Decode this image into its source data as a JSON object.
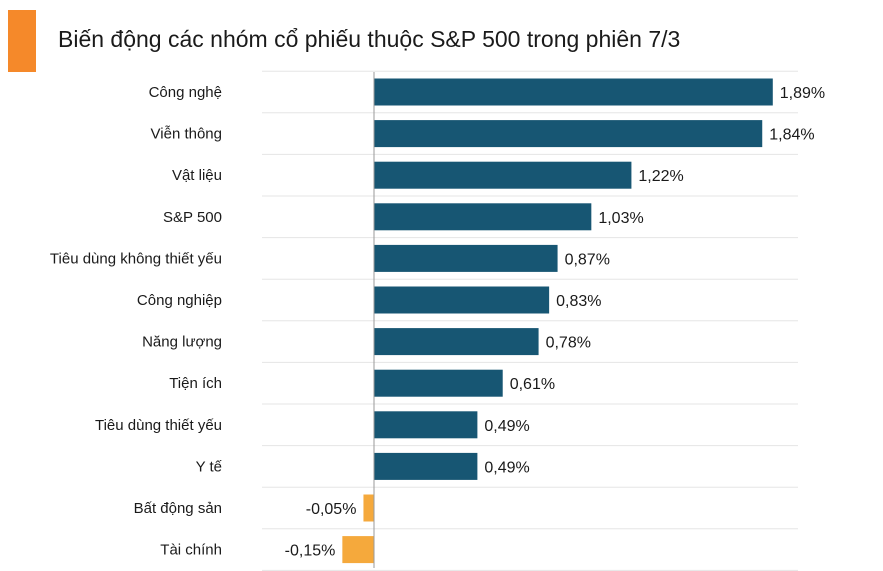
{
  "title": "Biến động các nhóm cổ phiếu thuộc S&P 500 trong phiên 7/3",
  "colors": {
    "accent": "#f5892a",
    "positive": "#175673",
    "negative": "#f5a93c",
    "grid": "#e5e5e5",
    "axis": "#9a9a9a"
  },
  "chart_data": {
    "type": "bar",
    "orientation": "horizontal",
    "categories": [
      "Công nghệ",
      "Viễn thông",
      "Vật liệu",
      "S&P 500",
      "Tiêu dùng không thiết yếu",
      "Công nghiệp",
      "Năng lượng",
      "Tiện ích",
      "Tiêu dùng thiết yếu",
      "Y tế",
      "Bất động sản",
      "Tài chính"
    ],
    "values": [
      1.89,
      1.84,
      1.22,
      1.03,
      0.87,
      0.83,
      0.78,
      0.61,
      0.49,
      0.49,
      -0.05,
      -0.15
    ],
    "value_labels": [
      "1,89%",
      "1,84%",
      "1,22%",
      "1,03%",
      "0,87%",
      "0,83%",
      "0,78%",
      "0,61%",
      "0,49%",
      "0,49%",
      "-0,05%",
      "-0,15%"
    ],
    "title": "Biến động các nhóm cổ phiếu thuộc S&P 500 trong phiên 7/3",
    "xlabel": "",
    "ylabel": "",
    "grid": true,
    "legend": false
  }
}
